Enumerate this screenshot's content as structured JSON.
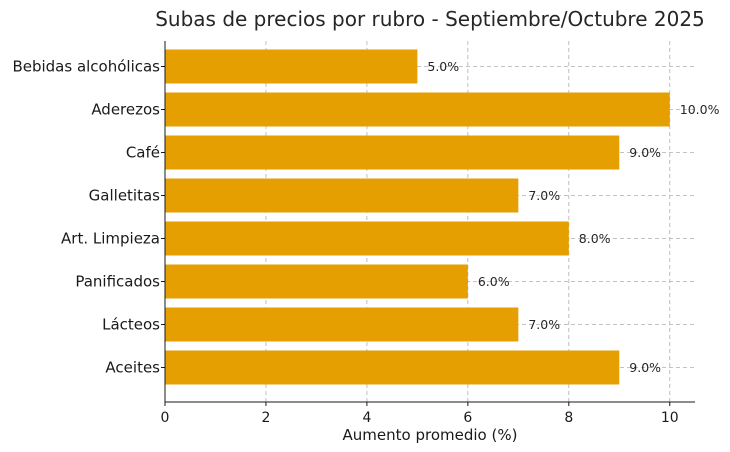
{
  "chart_data": {
    "type": "bar",
    "orientation": "horizontal",
    "title": "Subas de precios por rubro - Septiembre/Octubre 2025",
    "xlabel": "Aumento promedio (%)",
    "ylabel": "",
    "categories": [
      "Bebidas alcohólicas",
      "Aderezos",
      "Café",
      "Galletitas",
      "Art. Limpieza",
      "Panificados",
      "Lácteos",
      "Aceites"
    ],
    "values": [
      5.0,
      10.0,
      9.0,
      7.0,
      8.0,
      6.0,
      7.0,
      9.0
    ],
    "value_labels": [
      "5.0%",
      "10.0%",
      "9.0%",
      "7.0%",
      "8.0%",
      "6.0%",
      "7.0%",
      "9.0%"
    ],
    "xlim": [
      0,
      10.5
    ],
    "xticks": [
      0,
      2,
      4,
      6,
      8,
      10
    ],
    "xtick_labels": [
      "0",
      "2",
      "4",
      "6",
      "8",
      "10"
    ],
    "grid": true,
    "bar_color": "#E69F00"
  }
}
